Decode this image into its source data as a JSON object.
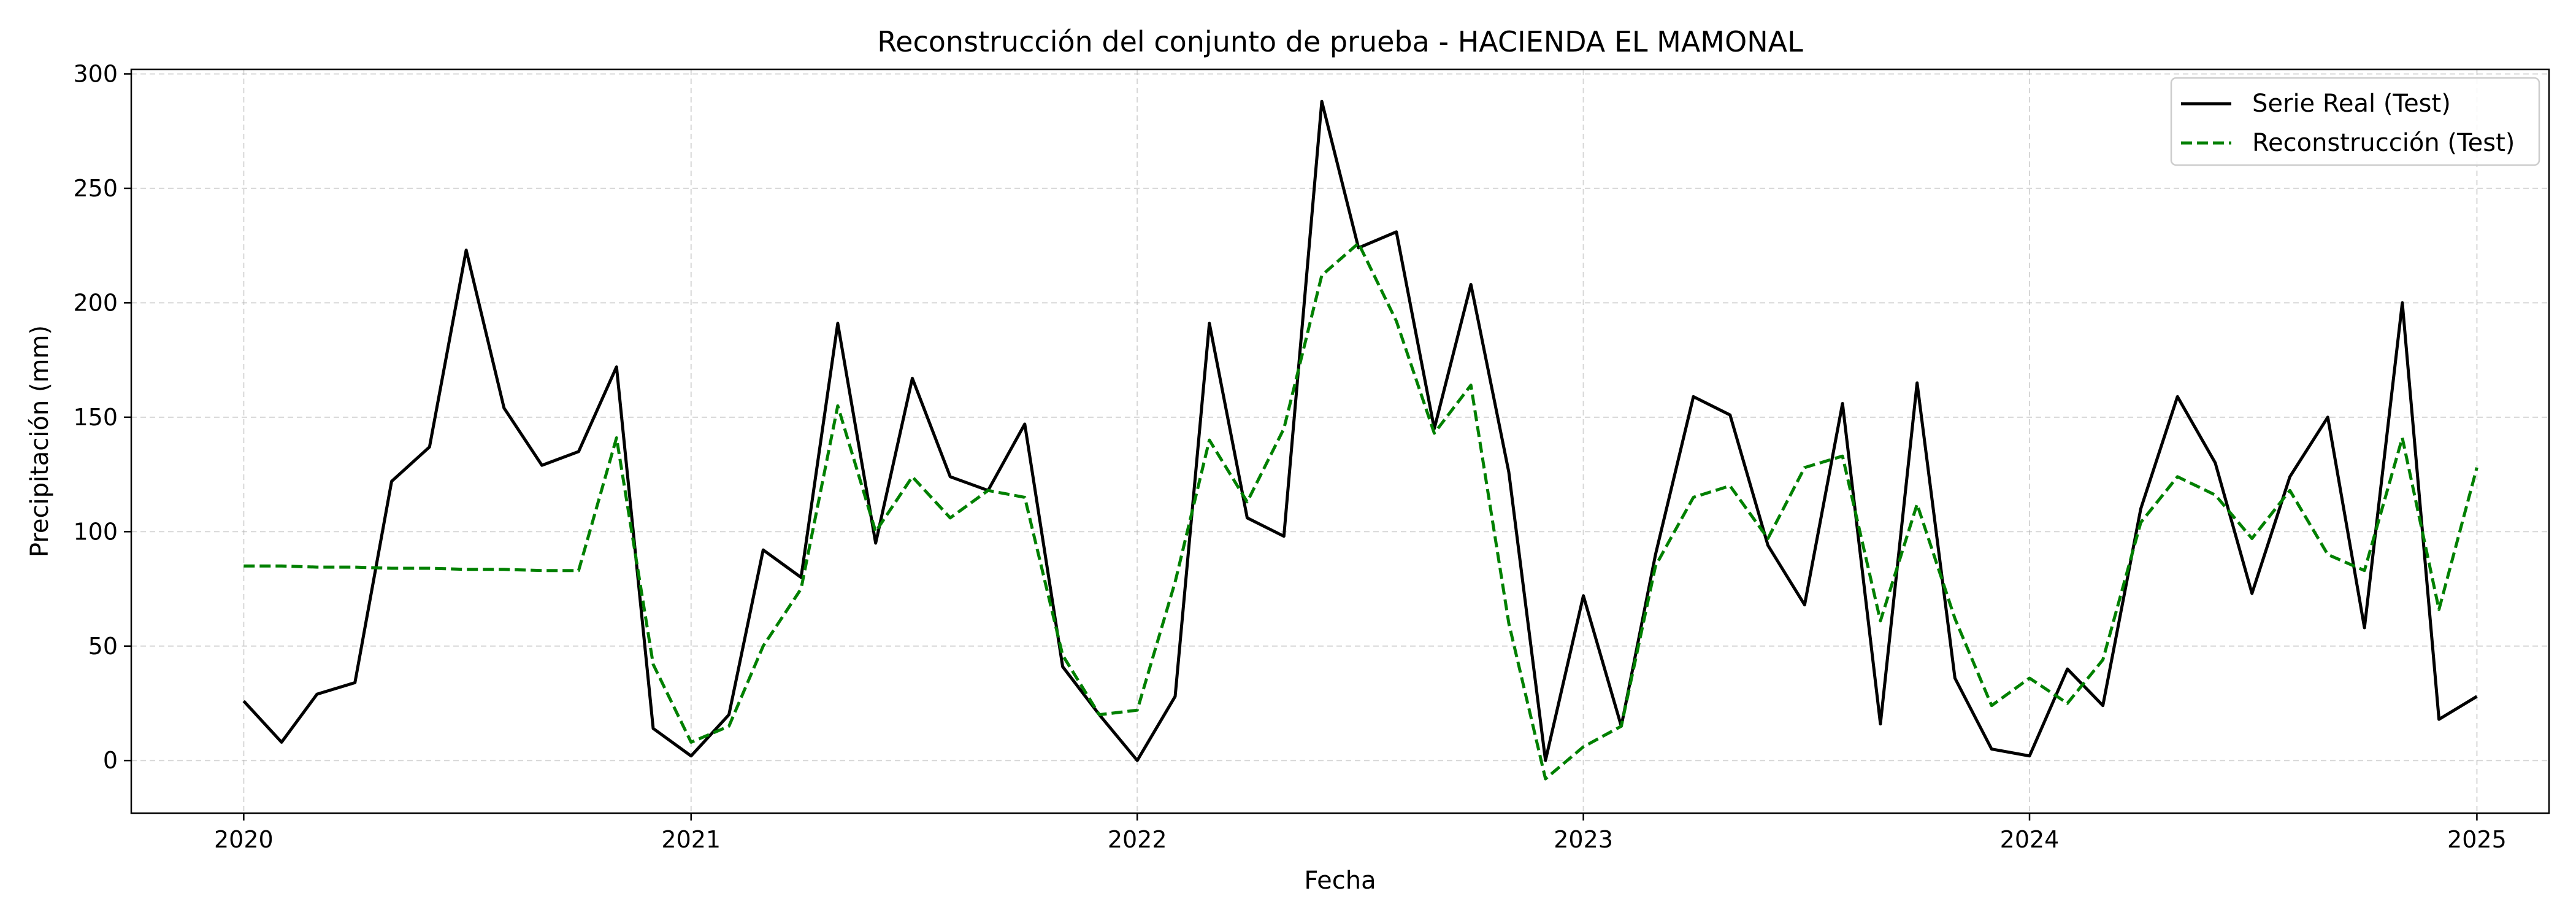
{
  "chart_data": {
    "type": "line",
    "title": "Reconstrucción del conjunto de prueba - HACIENDA EL MAMONAL",
    "xlabel": "Fecha",
    "ylabel": "Precipitación (mm)",
    "x_ticks": [
      "2020",
      "2021",
      "2022",
      "2023",
      "2024",
      "2025"
    ],
    "y_ticks": [
      0,
      50,
      100,
      150,
      200,
      250,
      300
    ],
    "xlim": [
      "2019-10-01",
      "2025-03-01"
    ],
    "ylim": [
      -23,
      302
    ],
    "grid": true,
    "legend_position": "top-right",
    "x": [
      "2020-01",
      "2020-02",
      "2020-03",
      "2020-04",
      "2020-05",
      "2020-06",
      "2020-07",
      "2020-08",
      "2020-09",
      "2020-10",
      "2020-11",
      "2020-12",
      "2021-01",
      "2021-02",
      "2021-03",
      "2021-04",
      "2021-05",
      "2021-06",
      "2021-07",
      "2021-08",
      "2021-09",
      "2021-10",
      "2021-11",
      "2021-12",
      "2022-01",
      "2022-02",
      "2022-03",
      "2022-04",
      "2022-05",
      "2022-06",
      "2022-07",
      "2022-08",
      "2022-09",
      "2022-10",
      "2022-11",
      "2022-12",
      "2023-01",
      "2023-02",
      "2023-03",
      "2023-04",
      "2023-05",
      "2023-06",
      "2023-07",
      "2023-08",
      "2023-09",
      "2023-10",
      "2023-11",
      "2023-12",
      "2024-01",
      "2024-02",
      "2024-03",
      "2024-04",
      "2024-05",
      "2024-06",
      "2024-07",
      "2024-08",
      "2024-09",
      "2024-10",
      "2024-11",
      "2024-12",
      "2025-01"
    ],
    "series": [
      {
        "name": "Serie Real (Test)",
        "color": "#000000",
        "style": "solid",
        "values": [
          26,
          8,
          29,
          34,
          122,
          137,
          223,
          154,
          129,
          135,
          172,
          14,
          2,
          20,
          92,
          80,
          191,
          95,
          167,
          124,
          118,
          147,
          41,
          20,
          0,
          28,
          191,
          106,
          98,
          288,
          224,
          231,
          145,
          208,
          126,
          0,
          72,
          15,
          90,
          159,
          151,
          94,
          68,
          156,
          16,
          165,
          36,
          5,
          2,
          40,
          24,
          110,
          159,
          130,
          73,
          124,
          150,
          58,
          200,
          18,
          28
        ]
      },
      {
        "name": "Reconstrucción (Test)",
        "color": "#008000",
        "style": "dashed",
        "values": [
          85,
          85,
          84.5,
          84.5,
          84,
          84,
          83.5,
          83.5,
          83,
          83,
          141,
          42,
          8,
          15,
          50,
          75,
          155,
          100,
          124,
          106,
          118,
          115,
          46,
          20,
          22,
          78,
          140,
          113,
          145,
          212,
          226,
          192,
          143,
          164,
          60,
          -8,
          6,
          15,
          85,
          115,
          120,
          97,
          128,
          133,
          61,
          112,
          62,
          24,
          36,
          25,
          44,
          104,
          124,
          116,
          97,
          118,
          90,
          83,
          141,
          66,
          128
        ]
      }
    ]
  }
}
